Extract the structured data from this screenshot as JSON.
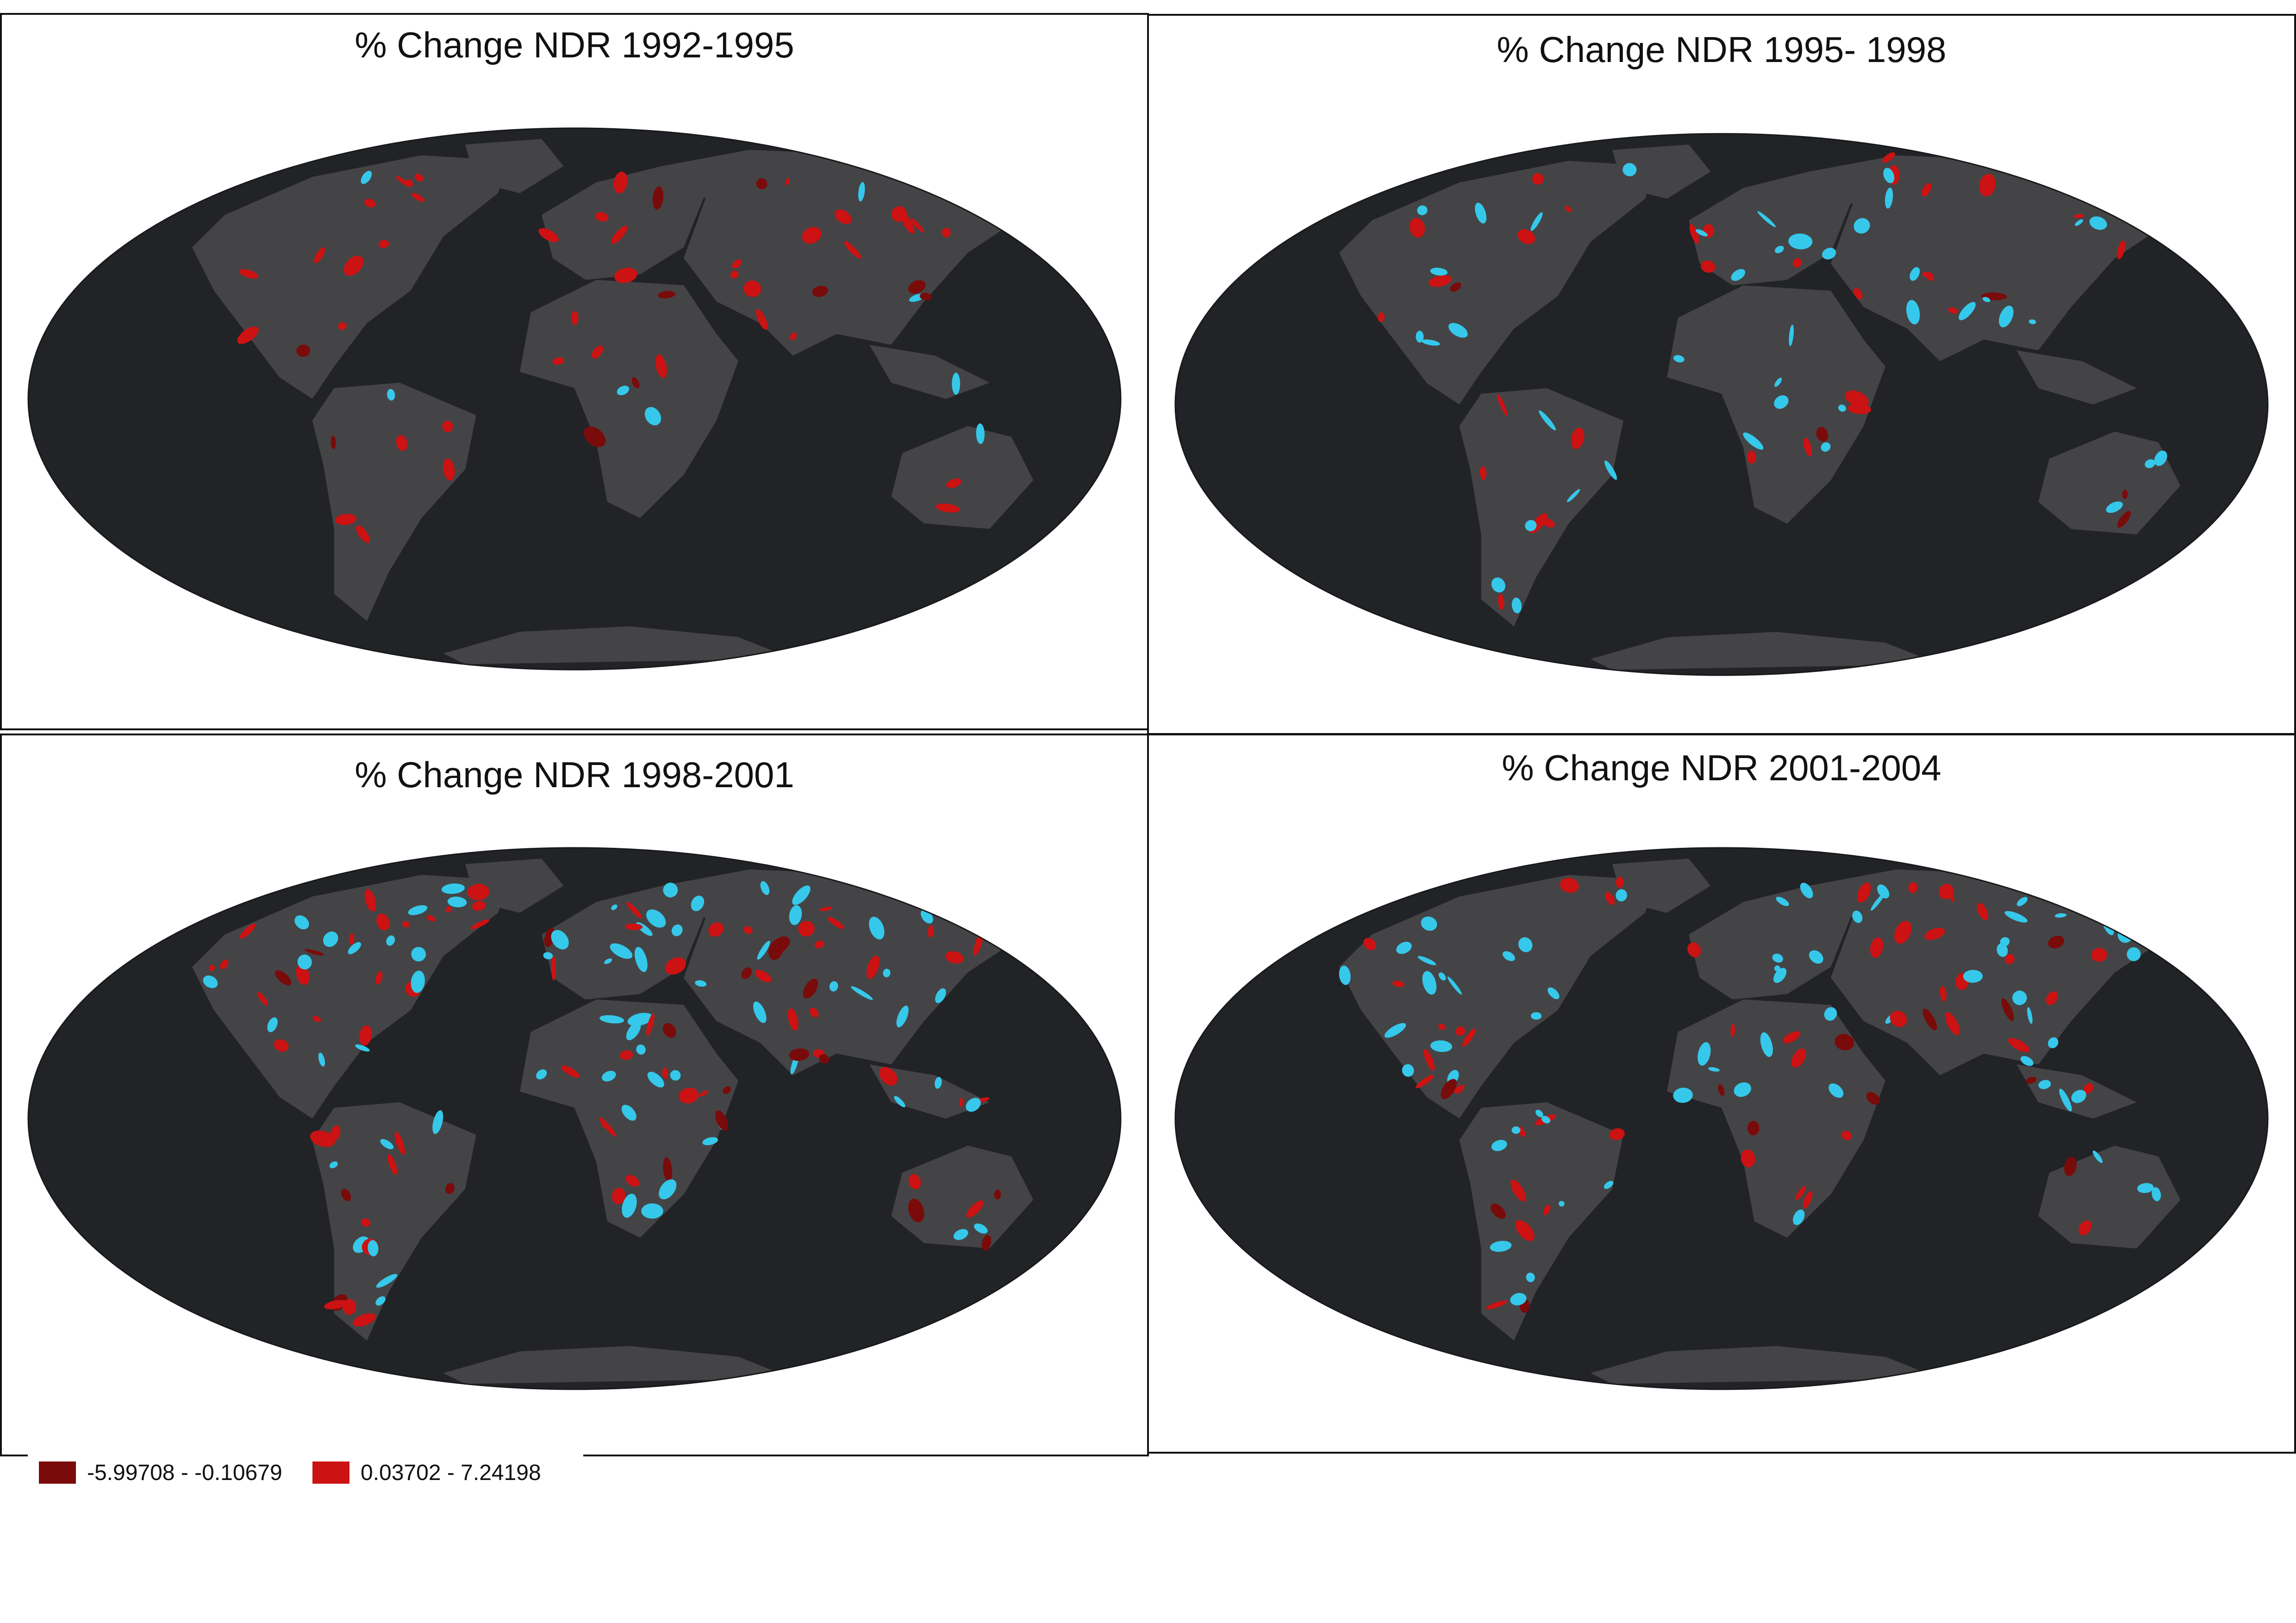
{
  "colors": {
    "ocean": "#222326",
    "land": "#444446",
    "negative": "#7a0b0b",
    "positive": "#cc1212",
    "cyan": "#35c8ea",
    "frame": "#111111"
  },
  "maps": [
    {
      "title": "% Change NDR 1992-1995",
      "cyan_level": 0.12,
      "red_level": 0.55
    },
    {
      "title": "% Change NDR 1995- 1998",
      "cyan_level": 0.45,
      "red_level": 0.5
    },
    {
      "title": "% Change NDR 1998-2001",
      "cyan_level": 0.8,
      "red_level": 0.75
    },
    {
      "title": "% Change NDR 2001-2004",
      "cyan_level": 0.75,
      "red_level": 0.6
    }
  ],
  "legend": {
    "items": [
      {
        "label": "-5.99708 - -0.10679",
        "color": "#7a0b0b"
      },
      {
        "label": "0.03702 - 7.24198",
        "color": "#cc1212"
      }
    ]
  }
}
